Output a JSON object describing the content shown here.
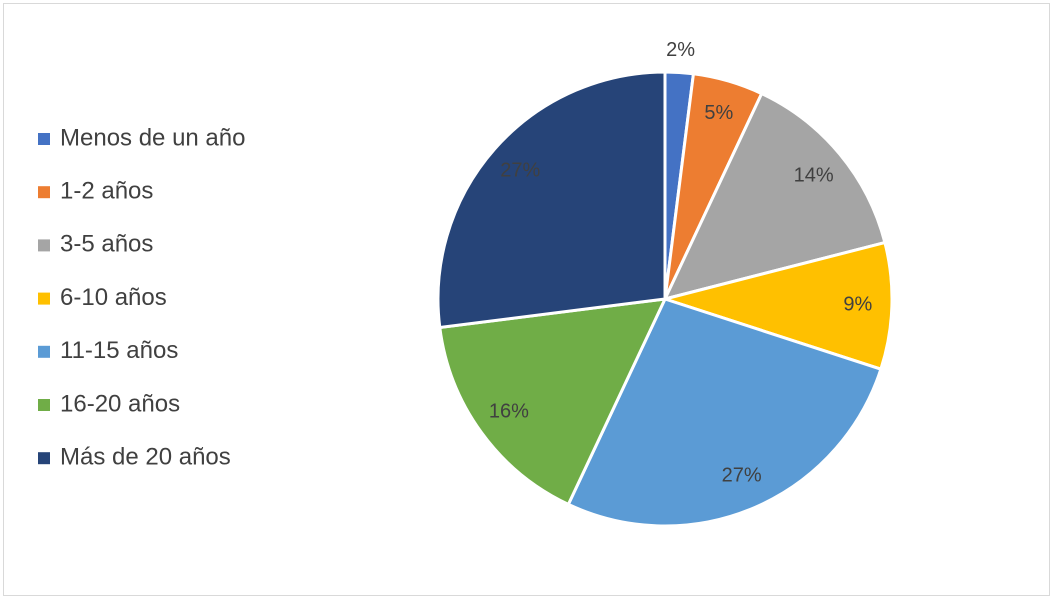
{
  "chart_data": {
    "type": "pie",
    "categories": [
      "Menos de un año",
      "1-2 años",
      "3-5 años",
      "6-10 años",
      "11-15 años",
      "16-20 años",
      "Más de 20 años"
    ],
    "values": [
      2,
      5,
      14,
      9,
      27,
      16,
      27
    ],
    "value_labels": [
      "2%",
      "5%",
      "14%",
      "9%",
      "27%",
      "16%",
      "27%"
    ],
    "colors": [
      "#4472c4",
      "#ed7d31",
      "#a5a5a5",
      "#ffc000",
      "#5b9bd5",
      "#70ad47",
      "#264478"
    ],
    "legend": "left"
  }
}
